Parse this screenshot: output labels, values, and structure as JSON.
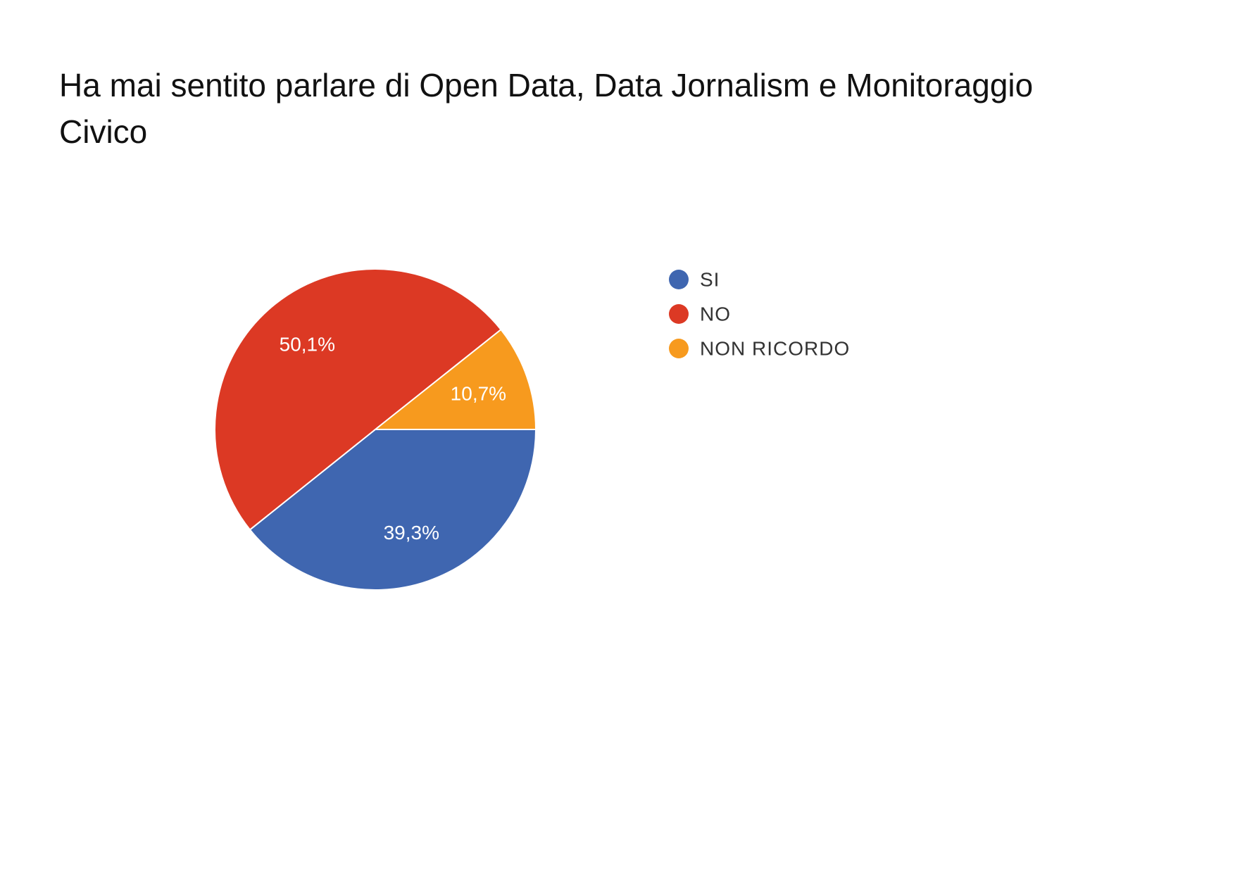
{
  "chart_data": {
    "type": "pie",
    "title": "Ha mai sentito parlare di Open Data, Data Jornalism e Monitoraggio Civico",
    "title_lines": [
      "Ha mai sentito parlare di Open Data, Data Jornalism e Monitoraggio",
      "Civico"
    ],
    "slices": [
      {
        "label": "SI",
        "value": 39.3,
        "display": "39,3%",
        "color": "#3f66b0"
      },
      {
        "label": "NO",
        "value": 50.1,
        "display": "50,1%",
        "color": "#dc3924"
      },
      {
        "label": "NON RICORDO",
        "value": 10.7,
        "display": "10,7%",
        "color": "#f79a1e"
      }
    ],
    "legend": {
      "placement": "right",
      "items": [
        "SI",
        "NO",
        "NON RICORDO"
      ]
    },
    "start": "3 o'clock, clockwise"
  }
}
